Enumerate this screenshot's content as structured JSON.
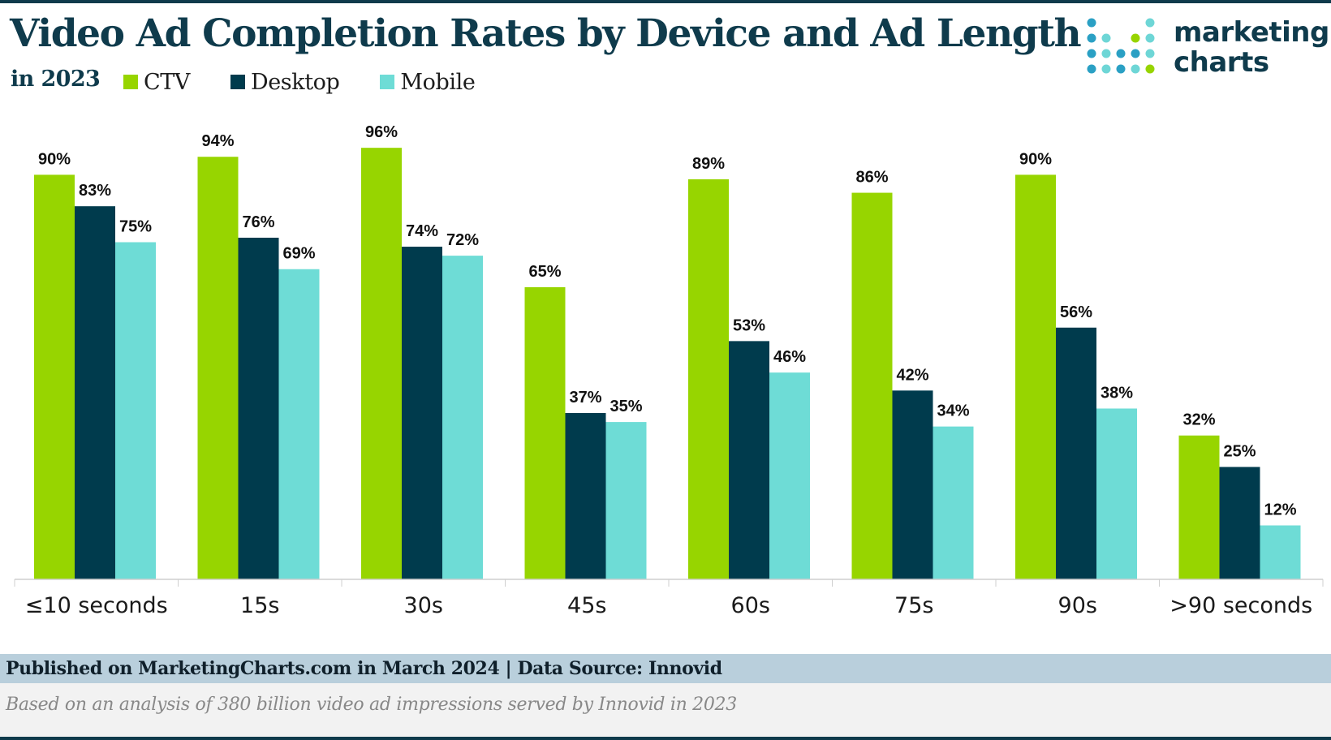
{
  "header": {
    "title": "Video Ad Completion Rates by Device and Ad Length",
    "subtitle": "in 2023"
  },
  "logo": {
    "line1": "marketing",
    "line2": "charts",
    "dot_colors": [
      "#2aa0c4",
      "#6ed6d6",
      "#0f3b4c",
      "#97d400"
    ]
  },
  "legend": [
    {
      "label": "CTV",
      "color": "#97d500"
    },
    {
      "label": "Desktop",
      "color": "#003b4d"
    },
    {
      "label": "Mobile",
      "color": "#6edcd6"
    }
  ],
  "chart_data": {
    "type": "bar",
    "title": "Video Ad Completion Rates by Device and Ad Length",
    "subtitle": "in 2023",
    "xlabel": "",
    "ylabel": "",
    "ylim": [
      0,
      100
    ],
    "grid": false,
    "legend_position": "top-left",
    "categories": [
      "≤10 seconds",
      "15s",
      "30s",
      "45s",
      "60s",
      "75s",
      "90s",
      ">90 seconds"
    ],
    "series": [
      {
        "name": "CTV",
        "color": "#97d500",
        "values": [
          90,
          94,
          96,
          65,
          89,
          86,
          90,
          32
        ]
      },
      {
        "name": "Desktop",
        "color": "#003b4d",
        "values": [
          83,
          76,
          74,
          37,
          53,
          42,
          56,
          25
        ]
      },
      {
        "name": "Mobile",
        "color": "#6edcd6",
        "values": [
          75,
          69,
          72,
          35,
          46,
          34,
          38,
          12
        ]
      }
    ],
    "value_suffix": "%"
  },
  "footer": {
    "published": "Published on MarketingCharts.com in March 2024 | Data Source: Innovid",
    "note": "Based on an analysis of 380 billion video ad impressions served by Innovid in 2023"
  }
}
